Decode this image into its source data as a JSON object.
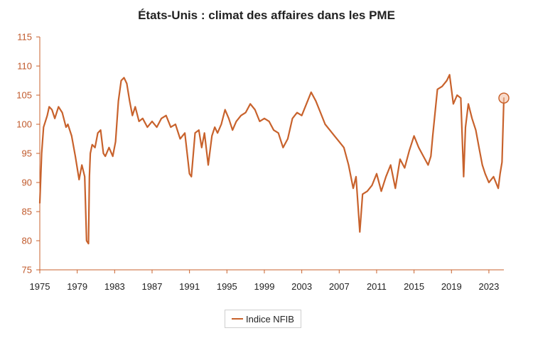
{
  "chart_data": {
    "type": "line",
    "title": "États-Unis : climat des affaires dans les PME",
    "xlabel": "",
    "ylabel": "",
    "ylim": [
      75,
      115
    ],
    "xlim": [
      1975,
      2024.6
    ],
    "y_ticks": [
      "75",
      "80",
      "85",
      "90",
      "95",
      "100",
      "105",
      "110",
      "115"
    ],
    "x_ticks": [
      "1975",
      "1979",
      "1983",
      "1987",
      "1991",
      "1995",
      "1999",
      "2003",
      "2007",
      "2011",
      "2015",
      "2019",
      "2023"
    ],
    "grid": false,
    "legend_position": "bottom",
    "colors": {
      "series": "#c8622c",
      "axis": "#c8622c",
      "marker": "#c8622c"
    },
    "series": [
      {
        "name": "Indice NFIB",
        "x": [
          1975.0,
          1975.2,
          1975.4,
          1975.6,
          1975.8,
          1976.0,
          1976.3,
          1976.6,
          1977.0,
          1977.4,
          1977.8,
          1978.0,
          1978.4,
          1978.8,
          1979.2,
          1979.5,
          1979.8,
          1980.0,
          1980.2,
          1980.3,
          1980.4,
          1980.6,
          1980.9,
          1981.2,
          1981.5,
          1981.8,
          1982.0,
          1982.4,
          1982.8,
          1983.1,
          1983.4,
          1983.7,
          1984.0,
          1984.3,
          1984.6,
          1984.9,
          1985.2,
          1985.6,
          1986.0,
          1986.5,
          1987.0,
          1987.5,
          1988.0,
          1988.5,
          1989.0,
          1989.5,
          1990.0,
          1990.5,
          1991.0,
          1991.2,
          1991.6,
          1992.0,
          1992.3,
          1992.6,
          1993.0,
          1993.4,
          1993.7,
          1994.0,
          1994.4,
          1994.8,
          1995.2,
          1995.6,
          1996.0,
          1996.5,
          1997.0,
          1997.5,
          1998.0,
          1998.5,
          1999.0,
          1999.5,
          2000.0,
          2000.5,
          2001.0,
          2001.5,
          2002.0,
          2002.5,
          2003.0,
          2003.5,
          2004.0,
          2004.5,
          2005.0,
          2005.5,
          2006.0,
          2006.5,
          2007.0,
          2007.5,
          2008.0,
          2008.5,
          2008.8,
          2009.2,
          2009.5,
          2010.0,
          2010.5,
          2011.0,
          2011.5,
          2012.0,
          2012.5,
          2013.0,
          2013.5,
          2014.0,
          2014.5,
          2015.0,
          2015.5,
          2016.0,
          2016.5,
          2016.8,
          2017.0,
          2017.5,
          2018.0,
          2018.5,
          2018.8,
          2019.2,
          2019.6,
          2020.0,
          2020.3,
          2020.5,
          2020.8,
          2021.2,
          2021.6,
          2022.0,
          2022.3,
          2022.6,
          2023.0,
          2023.5,
          2024.0,
          2024.2,
          2024.4,
          2024.6
        ],
        "values": [
          86.5,
          95.0,
          99.5,
          100.5,
          101.5,
          103.0,
          102.5,
          101.0,
          103.0,
          102.0,
          99.5,
          100.0,
          98.0,
          94.5,
          90.5,
          93.0,
          91.0,
          80.0,
          79.5,
          91.0,
          95.0,
          96.5,
          96.0,
          98.5,
          99.0,
          95.0,
          94.5,
          96.0,
          94.5,
          97.0,
          104.0,
          107.5,
          108.0,
          107.0,
          104.0,
          101.5,
          103.0,
          100.5,
          101.0,
          99.5,
          100.5,
          99.5,
          101.0,
          101.5,
          99.5,
          100.0,
          97.5,
          98.5,
          91.5,
          91.0,
          98.5,
          99.0,
          96.0,
          98.5,
          93.0,
          98.0,
          99.5,
          98.5,
          100.0,
          102.5,
          101.0,
          99.0,
          100.5,
          101.5,
          102.0,
          103.5,
          102.5,
          100.5,
          101.0,
          100.5,
          99.0,
          98.5,
          96.0,
          97.5,
          101.0,
          102.0,
          101.5,
          103.5,
          105.5,
          104.0,
          102.0,
          100.0,
          99.0,
          98.0,
          97.0,
          96.0,
          93.0,
          89.0,
          91.0,
          81.5,
          88.0,
          88.5,
          89.5,
          91.5,
          88.5,
          91.0,
          93.0,
          89.0,
          94.0,
          92.5,
          95.5,
          98.0,
          96.0,
          94.5,
          93.0,
          94.5,
          98.0,
          106.0,
          106.5,
          107.5,
          108.5,
          103.5,
          105.0,
          104.5,
          91.0,
          99.5,
          103.5,
          101.0,
          99.0,
          95.5,
          93.0,
          91.5,
          90.0,
          91.0,
          89.0,
          91.5,
          93.5,
          104.5
        ]
      }
    ],
    "annotations": [
      {
        "type": "circle-marker",
        "x": 2024.6,
        "y": 104.5
      }
    ]
  }
}
